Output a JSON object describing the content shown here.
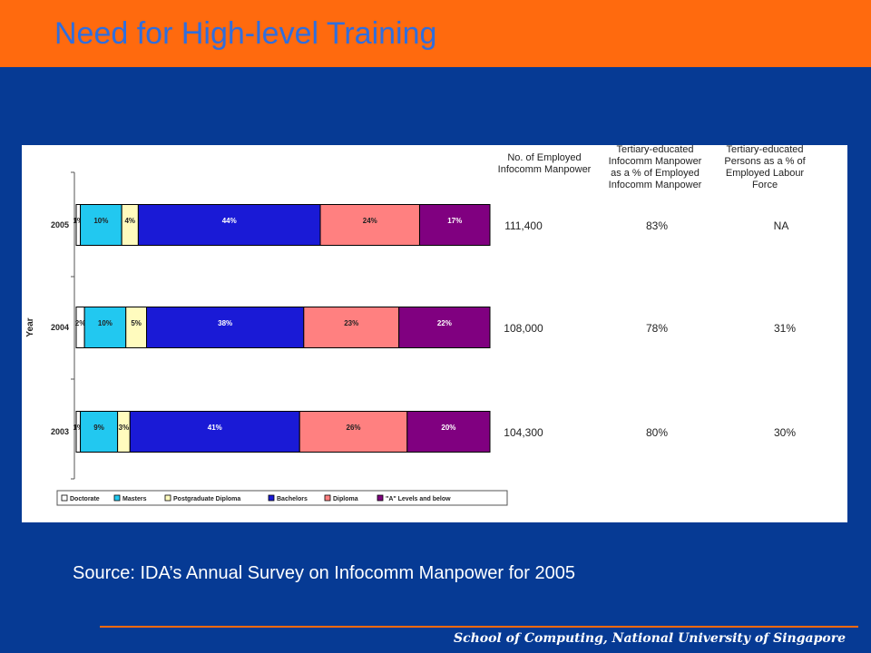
{
  "slide": {
    "title": "Need for High-level Training",
    "source": "Source: IDA’s Annual Survey on Infocomm Manpower for 2005",
    "footer": "School of Computing, National University of Singapore"
  },
  "colors": {
    "header": "#ff6a0e",
    "background": "#063a94",
    "title": "#2f6ede",
    "segments": [
      "#ffffff",
      "#22c8f0",
      "#fffbbe",
      "#1a1ad6",
      "#ff8080",
      "#800080"
    ]
  },
  "chart_data": {
    "type": "bar",
    "orientation": "horizontal",
    "stacked": true,
    "ylabel": "Year",
    "categories": [
      "2005",
      "2004",
      "2003"
    ],
    "series": [
      {
        "name": "Doctorate",
        "values": [
          1,
          2,
          1
        ],
        "labels": [
          "1%",
          "2%",
          "1%"
        ]
      },
      {
        "name": "Masters",
        "values": [
          10,
          10,
          9
        ],
        "labels": [
          "10%",
          "10%",
          "9%"
        ]
      },
      {
        "name": "Postgraduate Diploma",
        "values": [
          4,
          5,
          3
        ],
        "labels": [
          "4%",
          "5%",
          "3%"
        ]
      },
      {
        "name": "Bachelors",
        "values": [
          44,
          38,
          41
        ],
        "labels": [
          "44%",
          "38%",
          "41%"
        ]
      },
      {
        "name": "Diploma",
        "values": [
          24,
          23,
          26
        ],
        "labels": [
          "24%",
          "23%",
          "26%"
        ]
      },
      {
        "name": "\"A\" Levels and below",
        "values": [
          17,
          22,
          20
        ],
        "labels": [
          "17%",
          "22%",
          "20%"
        ]
      }
    ],
    "legend_position": "bottom",
    "table": {
      "headers": [
        [
          "No. of Employed",
          "Infocomm Manpower"
        ],
        [
          "Tertiary-educated",
          "Infocomm Manpower",
          "as a % of Employed",
          "Infocomm Manpower"
        ],
        [
          "Tertiary-educated",
          "Persons as a % of",
          "Employed Labour",
          "Force"
        ]
      ],
      "rows": [
        [
          "111,400",
          "83%",
          "NA"
        ],
        [
          "108,000",
          "78%",
          "31%"
        ],
        [
          "104,300",
          "80%",
          "30%"
        ]
      ]
    }
  }
}
